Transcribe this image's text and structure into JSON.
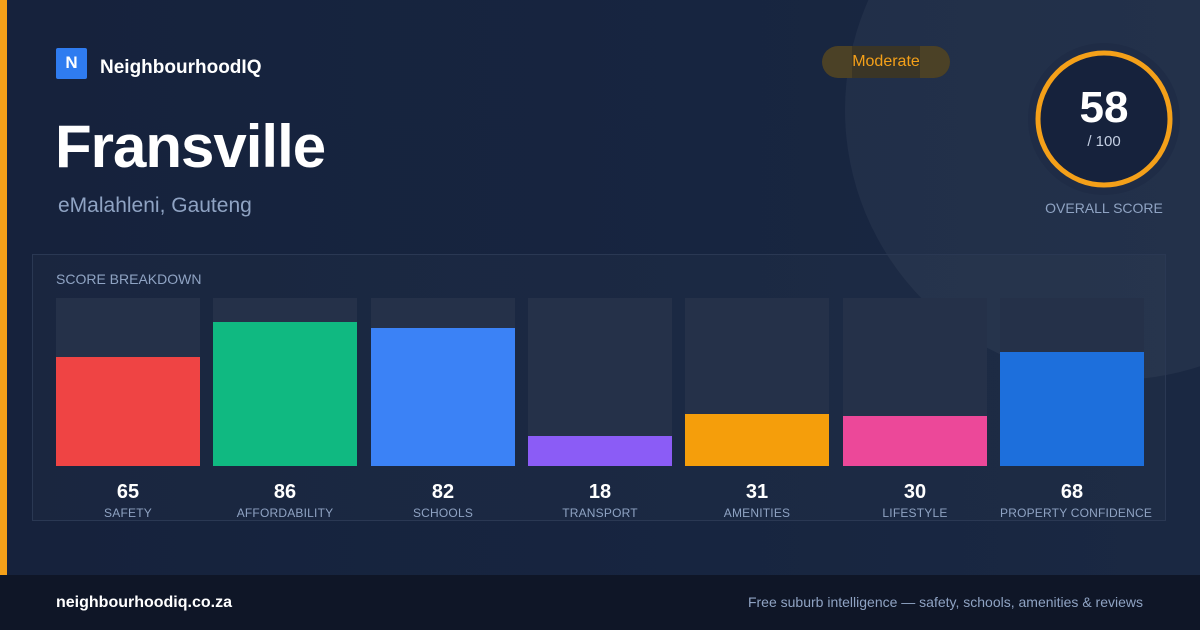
{
  "brand": {
    "logo_letter": "N",
    "name": "NeighbourhoodIQ",
    "accent_color": "#f4a019",
    "logo_color": "#2f7cf0"
  },
  "suburb": {
    "name": "Fransville",
    "location": "eMalahleni, Gauteng"
  },
  "rating_badge": {
    "label": "Moderate",
    "color": "#f4a019"
  },
  "overall_score": {
    "value": "58",
    "max": "/ 100",
    "caption": "OVERALL SCORE",
    "fraction": 0.58,
    "ring_color": "#f4a019"
  },
  "breakdown": {
    "title": "SCORE BREAKDOWN",
    "items": [
      {
        "label": "SAFETY",
        "value": "65",
        "score": 65,
        "color": "#ef4444"
      },
      {
        "label": "AFFORDABILITY",
        "value": "86",
        "score": 86,
        "color": "#10b981"
      },
      {
        "label": "SCHOOLS",
        "value": "82",
        "score": 82,
        "color": "#3b82f6"
      },
      {
        "label": "TRANSPORT",
        "value": "18",
        "score": 18,
        "color": "#8b5cf6"
      },
      {
        "label": "AMENITIES",
        "value": "31",
        "score": 31,
        "color": "#f59e0b"
      },
      {
        "label": "LIFESTYLE",
        "value": "30",
        "score": 30,
        "color": "#ec4899"
      },
      {
        "label": "PROPERTY CONFIDENCE",
        "value": "68",
        "score": 68,
        "color": "#1d6fdc"
      }
    ]
  },
  "footer": {
    "url": "neighbourhoodiq.co.za",
    "tagline": "Free suburb intelligence — safety, schools, amenities & reviews"
  }
}
